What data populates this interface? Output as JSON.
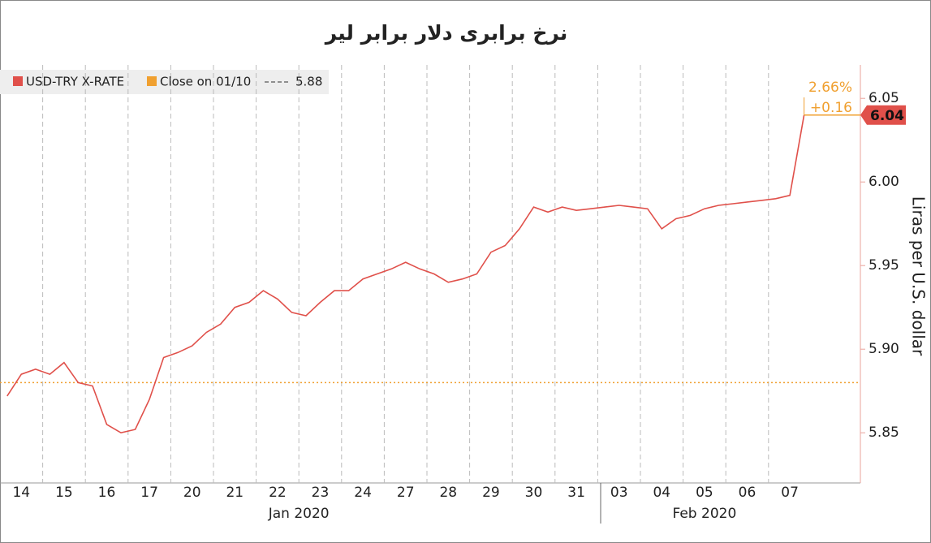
{
  "chart_data": {
    "type": "line",
    "title": "نرخ برابری دلار برابر لیر",
    "y_axis_label": "Liras per U.S. dollar",
    "categories": [
      null,
      "14",
      null,
      null,
      "15",
      null,
      null,
      "16",
      null,
      null,
      "17",
      null,
      null,
      "20",
      null,
      null,
      "21",
      null,
      null,
      "22",
      null,
      null,
      "23",
      null,
      null,
      "24",
      null,
      null,
      "27",
      null,
      null,
      "28",
      null,
      null,
      "29",
      null,
      null,
      "30",
      null,
      null,
      "31",
      null,
      null,
      "03",
      null,
      null,
      "04",
      null,
      null,
      "05",
      null,
      null,
      "06",
      null,
      null,
      "07",
      null
    ],
    "x_groups": [
      "Jan 2020",
      "Feb 2020"
    ],
    "series": [
      {
        "name": "USD-TRY X-RATE",
        "color": "#e0504a",
        "values": [
          5.872,
          5.885,
          5.888,
          5.885,
          5.892,
          5.88,
          5.878,
          5.855,
          5.85,
          5.852,
          5.87,
          5.895,
          5.898,
          5.902,
          5.91,
          5.915,
          5.925,
          5.928,
          5.935,
          5.93,
          5.922,
          5.92,
          5.928,
          5.935,
          5.935,
          5.942,
          5.945,
          5.948,
          5.952,
          5.948,
          5.945,
          5.94,
          5.942,
          5.945,
          5.958,
          5.962,
          5.972,
          5.985,
          5.982,
          5.985,
          5.983,
          5.984,
          5.985,
          5.986,
          5.985,
          5.984,
          5.972,
          5.978,
          5.98,
          5.984,
          5.986,
          5.987,
          5.988,
          5.989,
          5.99,
          5.992,
          6.04
        ]
      }
    ],
    "reference": {
      "name": "Close on 01/10",
      "value": 5.88,
      "color": "#f0a030"
    },
    "annotations": {
      "change_pct": "2.66%",
      "change_abs": "+0.16",
      "last_value": 6.04
    },
    "ylim": [
      5.82,
      6.07
    ],
    "yticks": [
      5.85,
      {
        "value": 5.9,
        "label": "5.90"
      },
      5.95,
      {
        "value": 6,
        "label": "6.00"
      },
      6.05
    ],
    "grid": true
  }
}
